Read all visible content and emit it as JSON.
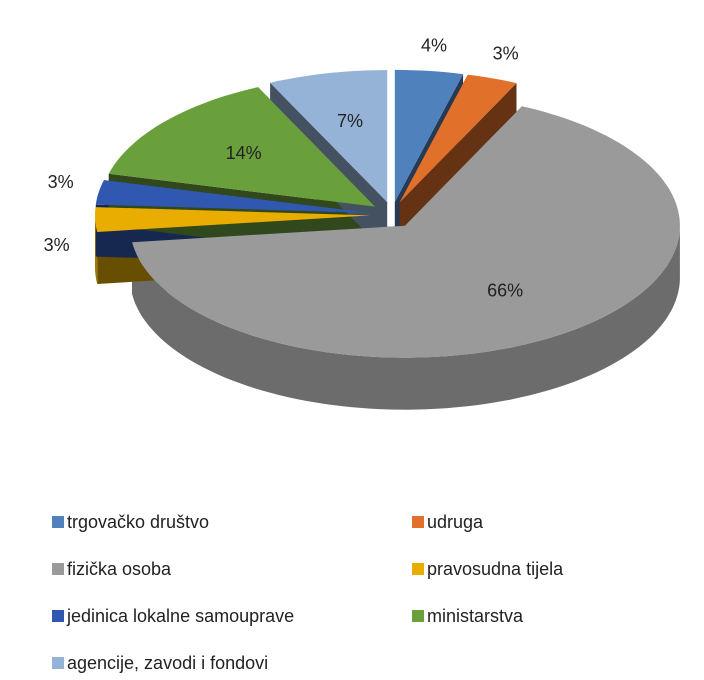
{
  "chart_data": {
    "type": "pie",
    "categories": [
      "trgovačko društvo",
      "udruga",
      "fizička  osoba",
      "pravosudna tijela",
      "jedinica lokalne samouprave",
      "ministarstva",
      "agencije, zavodi i fondovi"
    ],
    "values": [
      4,
      3,
      66,
      3,
      3,
      14,
      7
    ],
    "value_labels": [
      "4%",
      "3%",
      "66%",
      "3%",
      "3%",
      "14%",
      "7%"
    ],
    "colors": [
      "#4f81bd",
      "#e0702a",
      "#9a9a9a",
      "#e8ad00",
      "#3058b0",
      "#6aa03c",
      "#95b3d7"
    ],
    "legend": "bottom"
  }
}
